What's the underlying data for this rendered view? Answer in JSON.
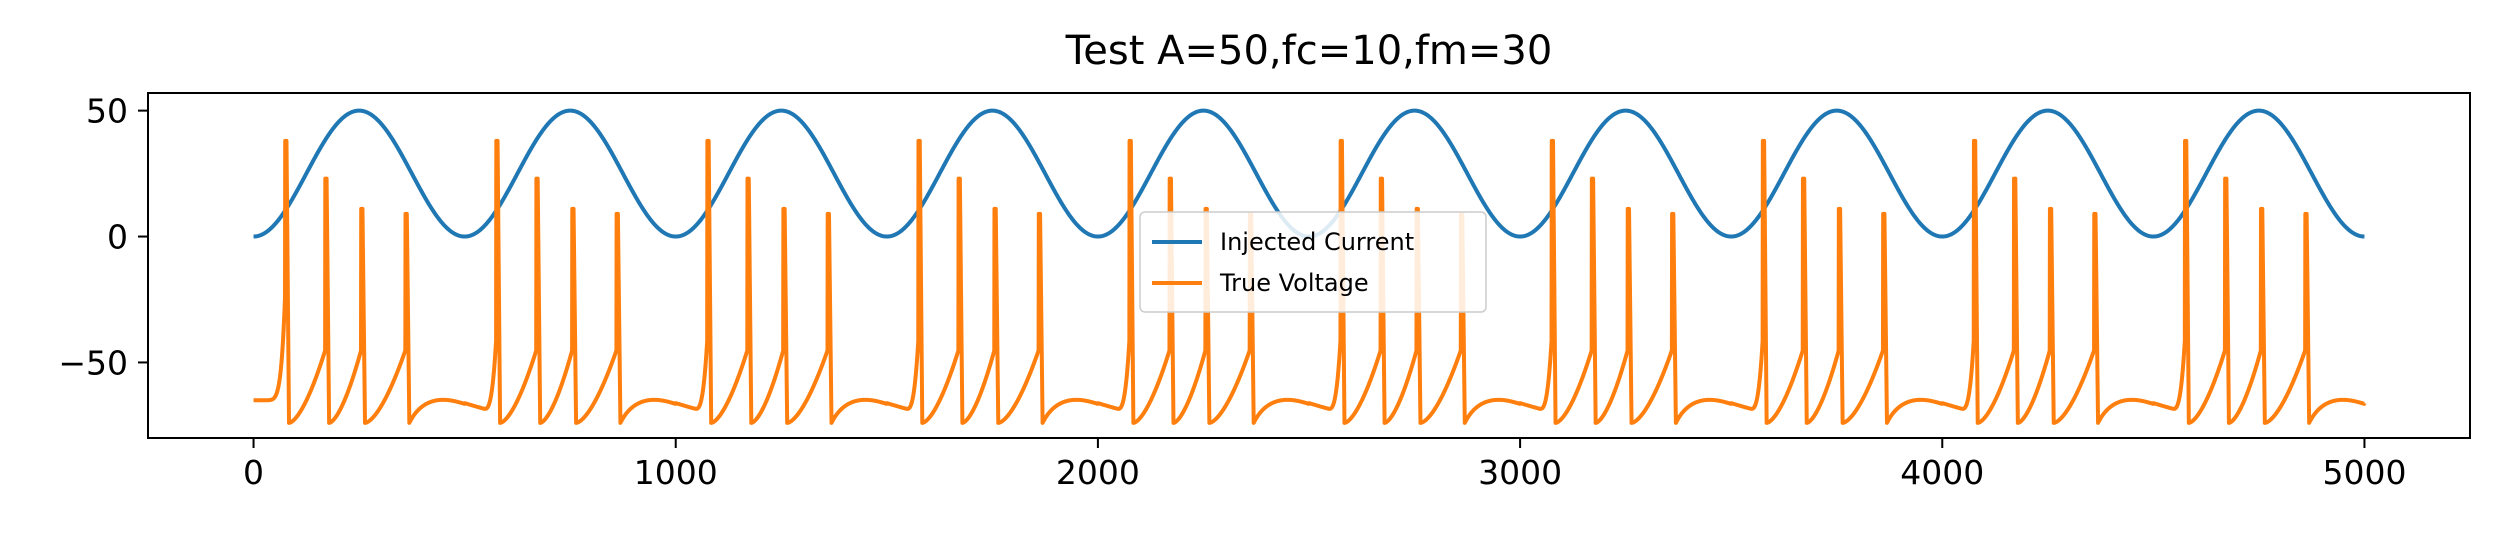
{
  "chart_data": {
    "type": "line",
    "title": "Test A=50,fc=10,fm=30",
    "xlabel": "",
    "ylabel": "",
    "xlim": [
      -250,
      5250
    ],
    "ylim": [
      -80,
      57
    ],
    "x_ticks": [
      0,
      1000,
      2000,
      3000,
      4000,
      5000
    ],
    "x_tick_labels": [
      "0",
      "1000",
      "2000",
      "3000",
      "4000",
      "5000"
    ],
    "y_ticks": [
      50,
      0,
      -50
    ],
    "y_tick_labels": [
      "50",
      "0",
      "−50"
    ],
    "grid": false,
    "legend_position": "center",
    "series": [
      {
        "name": "Injected Current",
        "color": "#1f77b4",
        "x_start": 0,
        "x_end": 5000,
        "amplitude": 50,
        "cycles": 10,
        "x": [
          0,
          125,
          250,
          375,
          500,
          625,
          750,
          875,
          1000,
          1125,
          1250,
          1375,
          1500,
          1625,
          1750,
          1875,
          2000,
          2125,
          2250,
          2375,
          2500,
          2625,
          2750,
          2875,
          3000,
          3125,
          3250,
          3375,
          3500,
          3625,
          3750,
          3875,
          4000,
          4125,
          4250,
          4375,
          4500,
          4625,
          4750,
          4875,
          5000
        ],
        "y": [
          0,
          25,
          50,
          25,
          0,
          25,
          50,
          25,
          0,
          25,
          50,
          25,
          0,
          25,
          50,
          25,
          0,
          25,
          50,
          25,
          0,
          25,
          50,
          25,
          0,
          25,
          50,
          25,
          0,
          25,
          50,
          25,
          0,
          25,
          50,
          25,
          0,
          25,
          50,
          25,
          0
        ]
      },
      {
        "name": "True Voltage",
        "color": "#ff7f0e",
        "x_start": 0,
        "x_end": 5000,
        "baseline": -65,
        "reset": -74,
        "burst_period": 500,
        "spike_times_in_burst": [
          75,
          170,
          255,
          360
        ],
        "spike_peaks": [
          38,
          23,
          11,
          9
        ]
      }
    ]
  }
}
